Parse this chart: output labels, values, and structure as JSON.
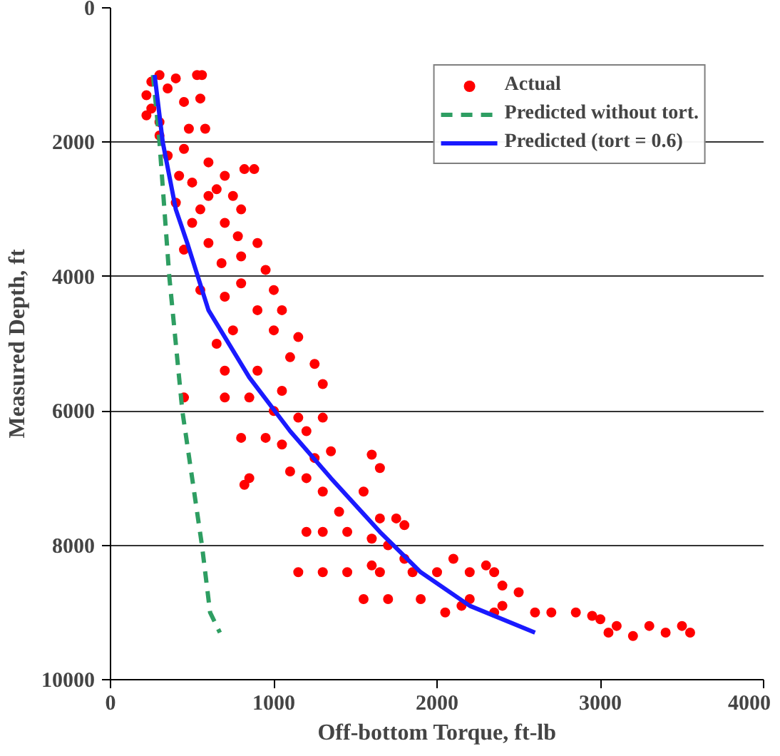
{
  "chart_data": {
    "type": "scatter",
    "xlabel": "Off-bottom Torque, ft-lb",
    "ylabel": "Measured Depth, ft",
    "xlim": [
      0,
      4000
    ],
    "xticks": [
      0,
      1000,
      2000,
      3000,
      4000
    ],
    "ylim": [
      10000,
      0
    ],
    "yticks": [
      0,
      2000,
      4000,
      6000,
      8000,
      10000
    ],
    "grid": "y",
    "legend": "top right",
    "series": [
      {
        "name": "Actual",
        "marker": "circle",
        "color": "#ff0000",
        "x": [
          220,
          250,
          300,
          400,
          530,
          560,
          250,
          300,
          450,
          550,
          350,
          220,
          480,
          580,
          300,
          350,
          450,
          600,
          820,
          880,
          700,
          500,
          400,
          600,
          750,
          650,
          550,
          420,
          500,
          700,
          800,
          780,
          900,
          600,
          450,
          680,
          800,
          950,
          550,
          800,
          1000,
          900,
          1050,
          700,
          750,
          1000,
          1150,
          650,
          1100,
          700,
          900,
          1250,
          1300,
          1050,
          850,
          450,
          700,
          1000,
          1150,
          800,
          950,
          1200,
          1300,
          1350,
          1050,
          1100,
          1250,
          1600,
          1650,
          850,
          820,
          1200,
          1300,
          1550,
          1400,
          1650,
          1750,
          1800,
          1300,
          1450,
          1600,
          1700,
          1200,
          1800,
          2100,
          1600,
          1150,
          1300,
          1450,
          1650,
          1850,
          2000,
          2200,
          2350,
          2400,
          2300,
          1550,
          1700,
          1900,
          2150,
          2200,
          2400,
          2500,
          2600,
          2700,
          2850,
          2950,
          3000,
          3100,
          3300,
          3500,
          3050,
          3200,
          3400,
          3550,
          2350,
          2050
        ],
        "values": [
          1300,
          1100,
          1000,
          1050,
          1000,
          1000,
          1500,
          1700,
          1400,
          1350,
          1200,
          1600,
          1800,
          1800,
          1900,
          2200,
          2100,
          2300,
          2400,
          2400,
          2500,
          2600,
          2900,
          2800,
          2800,
          2700,
          3000,
          2500,
          3200,
          3200,
          3000,
          3400,
          3500,
          3500,
          3600,
          3800,
          3700,
          3900,
          4200,
          4100,
          4200,
          4500,
          4500,
          4300,
          4800,
          4800,
          4900,
          5000,
          5200,
          5400,
          5400,
          5300,
          5600,
          5700,
          5800,
          5800,
          5800,
          6000,
          6100,
          6400,
          6400,
          6300,
          6100,
          6600,
          6500,
          6900,
          6700,
          6650,
          6850,
          7000,
          7100,
          7000,
          7200,
          7200,
          7500,
          7600,
          7600,
          7700,
          7800,
          7800,
          7900,
          8000,
          7800,
          8200,
          8200,
          8300,
          8400,
          8400,
          8400,
          8400,
          8400,
          8400,
          8400,
          8400,
          8600,
          8300,
          8800,
          8800,
          8800,
          8900,
          8800,
          8900,
          8700,
          9000,
          9000,
          9000,
          9050,
          9100,
          9200,
          9200,
          9200,
          9300,
          9350,
          9300,
          9300,
          9000,
          9000
        ]
      },
      {
        "name": "Predicted without tort.",
        "type": "line",
        "line_style": "dashed",
        "color": "#2e9e62",
        "x": [
          260,
          300,
          330,
          360,
          400,
          440,
          500,
          560,
          610,
          670
        ],
        "values": [
          1000,
          2000,
          3000,
          4000,
          5000,
          6000,
          7000,
          8000,
          9000,
          9300
        ]
      },
      {
        "name": "Predicted (tort = 0.6)",
        "type": "line",
        "line_style": "solid",
        "color": "#1a1aff",
        "x": [
          270,
          320,
          400,
          470,
          600,
          850,
          1100,
          1350,
          1650,
          1900,
          2200,
          2600
        ],
        "values": [
          1000,
          2000,
          3000,
          3500,
          4500,
          5500,
          6300,
          7000,
          7800,
          8400,
          8900,
          9300
        ]
      }
    ]
  }
}
